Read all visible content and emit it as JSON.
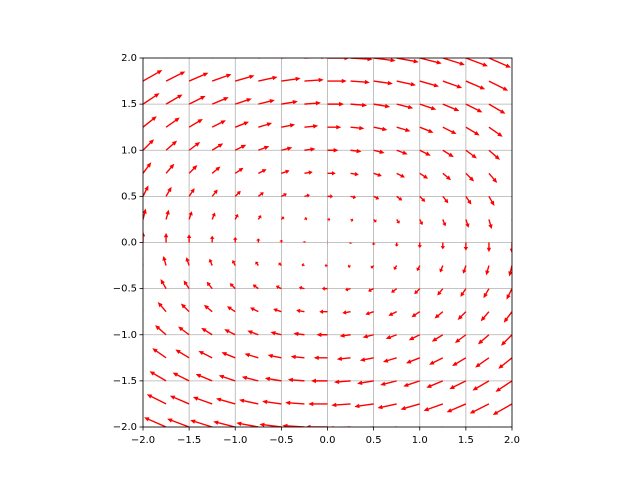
{
  "chart_data": {
    "type": "quiver",
    "color": "#ff0000",
    "grid": true,
    "xlim": [
      -2,
      2
    ],
    "ylim": [
      -2,
      2
    ],
    "xticks": [
      {
        "value": -2,
        "label": "−2.0"
      },
      {
        "value": -1.5,
        "label": "−1.5"
      },
      {
        "value": -1,
        "label": "−1.0"
      },
      {
        "value": -0.5,
        "label": "−0.5"
      },
      {
        "value": 0,
        "label": "0.0"
      },
      {
        "value": 0.5,
        "label": "0.5"
      },
      {
        "value": 1,
        "label": "1.0"
      },
      {
        "value": 1.5,
        "label": "1.5"
      },
      {
        "value": 2,
        "label": "2.0"
      }
    ],
    "yticks": [
      {
        "value": -2,
        "label": "−2.0"
      },
      {
        "value": -1.5,
        "label": "−1.5"
      },
      {
        "value": -1,
        "label": "−1.0"
      },
      {
        "value": -0.5,
        "label": "−0.5"
      },
      {
        "value": 0,
        "label": "0.0"
      },
      {
        "value": 0.5,
        "label": "0.5"
      },
      {
        "value": 1,
        "label": "1.0"
      },
      {
        "value": 1.5,
        "label": "1.5"
      },
      {
        "value": 2,
        "label": "2.0"
      }
    ],
    "x": [
      -2,
      -1.75,
      -1.5,
      -1.25,
      -1,
      -0.75,
      -0.5,
      -0.25,
      0,
      0.25,
      0.5,
      0.75,
      1,
      1.25,
      1.5,
      1.75,
      2
    ],
    "y": [
      -2,
      -1.75,
      -1.5,
      -1.25,
      -1,
      -0.75,
      -0.5,
      -0.25,
      0,
      0.25,
      0.5,
      0.75,
      1,
      1.25,
      1.5,
      1.75,
      2
    ],
    "u": [
      [
        -2,
        -2,
        -2,
        -2,
        -2,
        -2,
        -2,
        -2,
        -2,
        -2,
        -2,
        -2,
        -2,
        -2,
        -2,
        -2,
        -2
      ],
      [
        -1.75,
        -1.75,
        -1.75,
        -1.75,
        -1.75,
        -1.75,
        -1.75,
        -1.75,
        -1.75,
        -1.75,
        -1.75,
        -1.75,
        -1.75,
        -1.75,
        -1.75,
        -1.75,
        -1.75
      ],
      [
        -1.5,
        -1.5,
        -1.5,
        -1.5,
        -1.5,
        -1.5,
        -1.5,
        -1.5,
        -1.5,
        -1.5,
        -1.5,
        -1.5,
        -1.5,
        -1.5,
        -1.5,
        -1.5,
        -1.5
      ],
      [
        -1.25,
        -1.25,
        -1.25,
        -1.25,
        -1.25,
        -1.25,
        -1.25,
        -1.25,
        -1.25,
        -1.25,
        -1.25,
        -1.25,
        -1.25,
        -1.25,
        -1.25,
        -1.25,
        -1.25
      ],
      [
        -1,
        -1,
        -1,
        -1,
        -1,
        -1,
        -1,
        -1,
        -1,
        -1,
        -1,
        -1,
        -1,
        -1,
        -1,
        -1,
        -1
      ],
      [
        -0.75,
        -0.75,
        -0.75,
        -0.75,
        -0.75,
        -0.75,
        -0.75,
        -0.75,
        -0.75,
        -0.75,
        -0.75,
        -0.75,
        -0.75,
        -0.75,
        -0.75,
        -0.75,
        -0.75
      ],
      [
        -0.5,
        -0.5,
        -0.5,
        -0.5,
        -0.5,
        -0.5,
        -0.5,
        -0.5,
        -0.5,
        -0.5,
        -0.5,
        -0.5,
        -0.5,
        -0.5,
        -0.5,
        -0.5,
        -0.5
      ],
      [
        -0.25,
        -0.25,
        -0.25,
        -0.25,
        -0.25,
        -0.25,
        -0.25,
        -0.25,
        -0.25,
        -0.25,
        -0.25,
        -0.25,
        -0.25,
        -0.25,
        -0.25,
        -0.25,
        -0.25
      ],
      [
        0,
        0,
        0,
        0,
        0,
        0,
        0,
        0,
        0,
        0,
        0,
        0,
        0,
        0,
        0,
        0,
        0
      ],
      [
        0.25,
        0.25,
        0.25,
        0.25,
        0.25,
        0.25,
        0.25,
        0.25,
        0.25,
        0.25,
        0.25,
        0.25,
        0.25,
        0.25,
        0.25,
        0.25,
        0.25
      ],
      [
        0.5,
        0.5,
        0.5,
        0.5,
        0.5,
        0.5,
        0.5,
        0.5,
        0.5,
        0.5,
        0.5,
        0.5,
        0.5,
        0.5,
        0.5,
        0.5,
        0.5
      ],
      [
        0.75,
        0.75,
        0.75,
        0.75,
        0.75,
        0.75,
        0.75,
        0.75,
        0.75,
        0.75,
        0.75,
        0.75,
        0.75,
        0.75,
        0.75,
        0.75,
        0.75
      ],
      [
        1,
        1,
        1,
        1,
        1,
        1,
        1,
        1,
        1,
        1,
        1,
        1,
        1,
        1,
        1,
        1,
        1
      ],
      [
        1.25,
        1.25,
        1.25,
        1.25,
        1.25,
        1.25,
        1.25,
        1.25,
        1.25,
        1.25,
        1.25,
        1.25,
        1.25,
        1.25,
        1.25,
        1.25,
        1.25
      ],
      [
        1.5,
        1.5,
        1.5,
        1.5,
        1.5,
        1.5,
        1.5,
        1.5,
        1.5,
        1.5,
        1.5,
        1.5,
        1.5,
        1.5,
        1.5,
        1.5,
        1.5
      ],
      [
        1.75,
        1.75,
        1.75,
        1.75,
        1.75,
        1.75,
        1.75,
        1.75,
        1.75,
        1.75,
        1.75,
        1.75,
        1.75,
        1.75,
        1.75,
        1.75,
        1.75
      ],
      [
        2,
        2,
        2,
        2,
        2,
        2,
        2,
        2,
        2,
        2,
        2,
        2,
        2,
        2,
        2,
        2,
        2
      ]
    ],
    "v": [
      [
        1,
        0.875,
        0.75,
        0.625,
        0.5,
        0.375,
        0.25,
        0.125,
        0,
        -0.125,
        -0.25,
        -0.375,
        -0.5,
        -0.625,
        -0.75,
        -0.875,
        -1
      ],
      [
        1,
        0.875,
        0.75,
        0.625,
        0.5,
        0.375,
        0.25,
        0.125,
        0,
        -0.125,
        -0.25,
        -0.375,
        -0.5,
        -0.625,
        -0.75,
        -0.875,
        -1
      ],
      [
        1,
        0.875,
        0.75,
        0.625,
        0.5,
        0.375,
        0.25,
        0.125,
        0,
        -0.125,
        -0.25,
        -0.375,
        -0.5,
        -0.625,
        -0.75,
        -0.875,
        -1
      ],
      [
        1,
        0.875,
        0.75,
        0.625,
        0.5,
        0.375,
        0.25,
        0.125,
        0,
        -0.125,
        -0.25,
        -0.375,
        -0.5,
        -0.625,
        -0.75,
        -0.875,
        -1
      ],
      [
        1,
        0.875,
        0.75,
        0.625,
        0.5,
        0.375,
        0.25,
        0.125,
        0,
        -0.125,
        -0.25,
        -0.375,
        -0.5,
        -0.625,
        -0.75,
        -0.875,
        -1
      ],
      [
        1,
        0.875,
        0.75,
        0.625,
        0.5,
        0.375,
        0.25,
        0.125,
        0,
        -0.125,
        -0.25,
        -0.375,
        -0.5,
        -0.625,
        -0.75,
        -0.875,
        -1
      ],
      [
        1,
        0.875,
        0.75,
        0.625,
        0.5,
        0.375,
        0.25,
        0.125,
        0,
        -0.125,
        -0.25,
        -0.375,
        -0.5,
        -0.625,
        -0.75,
        -0.875,
        -1
      ],
      [
        1,
        0.875,
        0.75,
        0.625,
        0.5,
        0.375,
        0.25,
        0.125,
        0,
        -0.125,
        -0.25,
        -0.375,
        -0.5,
        -0.625,
        -0.75,
        -0.875,
        -1
      ],
      [
        1,
        0.875,
        0.75,
        0.625,
        0.5,
        0.375,
        0.25,
        0.125,
        0,
        -0.125,
        -0.25,
        -0.375,
        -0.5,
        -0.625,
        -0.75,
        -0.875,
        -1
      ],
      [
        1,
        0.875,
        0.75,
        0.625,
        0.5,
        0.375,
        0.25,
        0.125,
        0,
        -0.125,
        -0.25,
        -0.375,
        -0.5,
        -0.625,
        -0.75,
        -0.875,
        -1
      ],
      [
        1,
        0.875,
        0.75,
        0.625,
        0.5,
        0.375,
        0.25,
        0.125,
        0,
        -0.125,
        -0.25,
        -0.375,
        -0.5,
        -0.625,
        -0.75,
        -0.875,
        -1
      ],
      [
        1,
        0.875,
        0.75,
        0.625,
        0.5,
        0.375,
        0.25,
        0.125,
        0,
        -0.125,
        -0.25,
        -0.375,
        -0.5,
        -0.625,
        -0.75,
        -0.875,
        -1
      ],
      [
        1,
        0.875,
        0.75,
        0.625,
        0.5,
        0.375,
        0.25,
        0.125,
        0,
        -0.125,
        -0.25,
        -0.375,
        -0.5,
        -0.625,
        -0.75,
        -0.875,
        -1
      ],
      [
        1,
        0.875,
        0.75,
        0.625,
        0.5,
        0.375,
        0.25,
        0.125,
        0,
        -0.125,
        -0.25,
        -0.375,
        -0.5,
        -0.625,
        -0.75,
        -0.875,
        -1
      ],
      [
        1,
        0.875,
        0.75,
        0.625,
        0.5,
        0.375,
        0.25,
        0.125,
        0,
        -0.125,
        -0.25,
        -0.375,
        -0.5,
        -0.625,
        -0.75,
        -0.875,
        -1
      ],
      [
        1,
        0.875,
        0.75,
        0.625,
        0.5,
        0.375,
        0.25,
        0.125,
        0,
        -0.125,
        -0.25,
        -0.375,
        -0.5,
        -0.625,
        -0.75,
        -0.875,
        -1
      ],
      [
        1,
        0.875,
        0.75,
        0.625,
        0.5,
        0.375,
        0.25,
        0.125,
        0,
        -0.125,
        -0.25,
        -0.375,
        -0.5,
        -0.625,
        -0.75,
        -0.875,
        -1
      ]
    ]
  }
}
